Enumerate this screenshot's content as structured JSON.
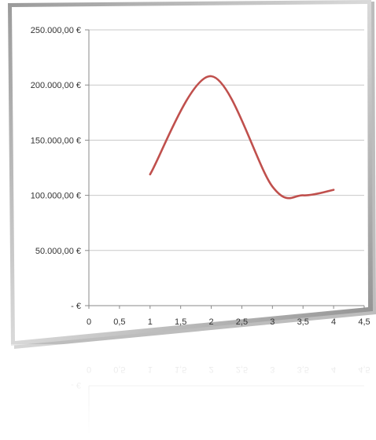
{
  "chart_data": {
    "type": "line",
    "smooth": true,
    "x": [
      1,
      2,
      3,
      3.5,
      4
    ],
    "y": [
      119000,
      208000,
      108000,
      100000,
      105000
    ],
    "xlim": [
      0,
      4.5
    ],
    "ylim": [
      0,
      250000
    ],
    "x_ticks": [
      "0",
      "0,5",
      "1",
      "1,5",
      "2",
      "2,5",
      "3",
      "3,5",
      "4",
      "4,5"
    ],
    "y_ticks": [
      "-  €",
      "50.000,00 €",
      "100.000,00 €",
      "150.000,00 €",
      "200.000,00 €",
      "250.000,00 €"
    ],
    "grid": "horizontal",
    "line_color": "#c0504d",
    "reflection": true
  }
}
